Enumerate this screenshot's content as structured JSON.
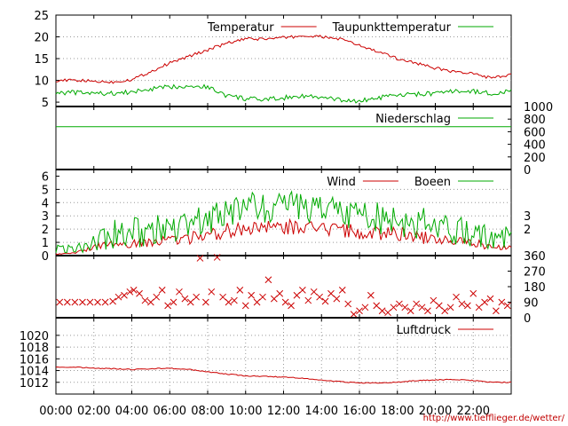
{
  "chart_data": [
    {
      "panel": "temperature",
      "type": "line",
      "xlim": [
        0,
        24
      ],
      "ylim": [
        4,
        25
      ],
      "yticks": [
        "5",
        "10",
        "15",
        "20",
        "25"
      ],
      "grid": true,
      "legend": "top-right",
      "series": [
        {
          "name": "Temperatur",
          "color": "#cc0000",
          "x": [
            0,
            1,
            2,
            3,
            4,
            5,
            6,
            7,
            8,
            9,
            10,
            11,
            12,
            13,
            14,
            15,
            16,
            17,
            18,
            19,
            20,
            21,
            22,
            23,
            24
          ],
          "values": [
            10,
            10,
            9.8,
            9.6,
            10.2,
            12,
            14,
            15.5,
            17,
            18.5,
            19.5,
            19.5,
            19.8,
            20.2,
            20,
            19.5,
            18,
            16.5,
            15,
            14,
            12.8,
            12,
            11.5,
            10.5,
            11.2
          ]
        },
        {
          "name": "Taupunkttemperatur",
          "color": "#00aa00",
          "x": [
            0,
            1,
            2,
            3,
            4,
            5,
            6,
            7,
            8,
            9,
            10,
            11,
            12,
            13,
            14,
            15,
            16,
            17,
            18,
            19,
            20,
            21,
            22,
            23,
            24
          ],
          "values": [
            7.2,
            7.2,
            7,
            7,
            7.3,
            8,
            8.5,
            8.8,
            8.5,
            6.5,
            5.8,
            5.5,
            6,
            6.5,
            6,
            5.5,
            5.2,
            6,
            6.5,
            6.8,
            7,
            7.5,
            7.5,
            7,
            7.5
          ]
        }
      ]
    },
    {
      "panel": "precipitation",
      "type": "line",
      "xlim": [
        0,
        24
      ],
      "ylim": [
        0,
        1000
      ],
      "yticks": [
        "0",
        "200",
        "400",
        "600",
        "800",
        "1000"
      ],
      "legend": "top-right",
      "series": [
        {
          "name": "Niederschlag",
          "color": "#00aa00",
          "x": [
            0,
            24
          ],
          "values": [
            680,
            680
          ]
        }
      ]
    },
    {
      "panel": "wind",
      "type": "line",
      "xlim": [
        0,
        24
      ],
      "ylim": [
        0,
        6.5
      ],
      "yticks": [
        "0",
        "1",
        "2",
        "3",
        "4",
        "5",
        "6"
      ],
      "yticks_right": [
        "2",
        "3"
      ],
      "grid": true,
      "legend": "top-right",
      "series": [
        {
          "name": "Wind",
          "color": "#cc0000",
          "x": [
            0,
            1,
            2,
            3,
            4,
            5,
            6,
            7,
            8,
            9,
            10,
            11,
            12,
            13,
            14,
            15,
            16,
            17,
            18,
            19,
            20,
            21,
            22,
            23,
            24
          ],
          "values": [
            0.1,
            0.2,
            0.6,
            0.9,
            0.9,
            1.0,
            1.2,
            1.3,
            1.5,
            1.9,
            2.1,
            2.0,
            2.1,
            2.2,
            2.0,
            2.0,
            1.8,
            1.6,
            1.6,
            1.4,
            1.3,
            1.1,
            1.0,
            0.6,
            0.6
          ]
        },
        {
          "name": "Boeen",
          "color": "#00aa00",
          "x": [
            0,
            1,
            2,
            3,
            4,
            5,
            6,
            7,
            8,
            9,
            10,
            11,
            12,
            13,
            14,
            15,
            16,
            17,
            18,
            19,
            20,
            21,
            22,
            23,
            24
          ],
          "values": [
            0.5,
            0.5,
            1.2,
            1.6,
            1.7,
            1.8,
            2.0,
            2.2,
            2.7,
            3.4,
            3.7,
            3.5,
            3.6,
            3.7,
            3.4,
            3.3,
            3.1,
            2.8,
            2.6,
            2.5,
            2.3,
            2.0,
            1.8,
            1.3,
            1.4
          ]
        }
      ]
    },
    {
      "panel": "wind-direction",
      "type": "scatter",
      "xlim": [
        0,
        24
      ],
      "ylim": [
        0,
        360
      ],
      "yticks": [
        "0",
        "90",
        "180",
        "270",
        "360"
      ],
      "marker": "x",
      "color": "#cc0000",
      "x": [
        0.2,
        0.6,
        1.0,
        1.4,
        1.8,
        2.2,
        2.6,
        3.0,
        3.3,
        3.6,
        3.9,
        4.1,
        4.4,
        4.7,
        5.0,
        5.3,
        5.6,
        5.9,
        6.2,
        6.5,
        6.8,
        7.1,
        7.4,
        7.6,
        7.9,
        8.2,
        8.5,
        8.8,
        9.1,
        9.4,
        9.7,
        10.0,
        10.3,
        10.6,
        10.9,
        11.2,
        11.5,
        11.8,
        12.1,
        12.4,
        12.7,
        13.0,
        13.3,
        13.6,
        13.9,
        14.2,
        14.5,
        14.8,
        15.1,
        15.4,
        15.7,
        16.0,
        16.3,
        16.6,
        16.9,
        17.2,
        17.5,
        17.8,
        18.1,
        18.4,
        18.7,
        19.0,
        19.3,
        19.6,
        19.9,
        20.2,
        20.5,
        20.8,
        21.1,
        21.4,
        21.7,
        22.0,
        22.3,
        22.6,
        22.9,
        23.2,
        23.5,
        23.8
      ],
      "y": [
        90,
        90,
        90,
        90,
        90,
        90,
        90,
        95,
        120,
        130,
        150,
        160,
        140,
        100,
        90,
        120,
        160,
        70,
        90,
        150,
        110,
        90,
        120,
        345,
        90,
        150,
        350,
        120,
        90,
        100,
        160,
        70,
        130,
        90,
        120,
        220,
        110,
        140,
        90,
        70,
        130,
        160,
        100,
        150,
        120,
        95,
        140,
        110,
        160,
        80,
        20,
        40,
        60,
        130,
        70,
        40,
        30,
        60,
        80,
        60,
        40,
        80,
        60,
        40,
        100,
        70,
        40,
        60,
        120,
        80,
        70,
        140,
        60,
        90,
        110,
        40,
        90,
        70
      ]
    },
    {
      "panel": "pressure",
      "type": "line",
      "xlim": [
        0,
        24
      ],
      "ylim": [
        1010,
        1023
      ],
      "yticks": [
        "1012",
        "1014",
        "1016",
        "1018",
        "1020"
      ],
      "grid": true,
      "legend": "top-right",
      "xticks": [
        "00:00",
        "02:00",
        "04:00",
        "06:00",
        "08:00",
        "10:00",
        "12:00",
        "14:00",
        "16:00",
        "18:00",
        "20:00",
        "22:00"
      ],
      "series": [
        {
          "name": "Luftdruck",
          "color": "#cc0000",
          "x": [
            0,
            1,
            2,
            3,
            4,
            5,
            6,
            7,
            8,
            9,
            10,
            11,
            12,
            13,
            14,
            15,
            16,
            17,
            18,
            19,
            20,
            21,
            22,
            23,
            24
          ],
          "values": [
            1014.6,
            1014.6,
            1014.4,
            1014.3,
            1014.2,
            1014.3,
            1014.4,
            1014.2,
            1013.8,
            1013.4,
            1013.1,
            1013.0,
            1012.9,
            1012.7,
            1012.4,
            1012.1,
            1011.9,
            1011.9,
            1012.0,
            1012.3,
            1012.4,
            1012.5,
            1012.3,
            1012.0,
            1012.0
          ]
        }
      ]
    }
  ],
  "credit": "http://www.tiefflieger.de/wetter/"
}
